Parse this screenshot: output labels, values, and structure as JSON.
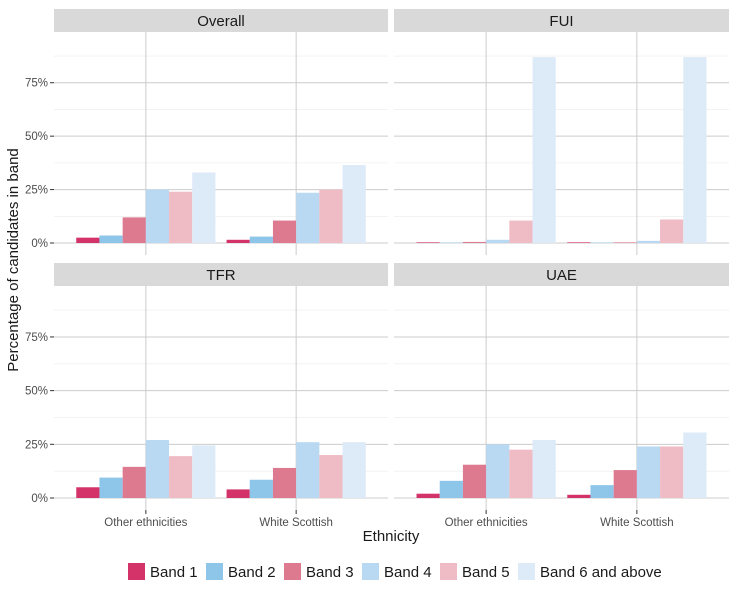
{
  "chart_data": {
    "type": "bar",
    "xlabel": "Ethnicity",
    "ylabel": "Percentage of candidates in band",
    "ylim": [
      0,
      95
    ],
    "y_ticks": [
      0,
      25,
      50,
      75
    ],
    "y_tick_labels": [
      "0%",
      "25%",
      "50%",
      "75%"
    ],
    "categories": [
      "Other ethnicities",
      "White Scottish"
    ],
    "series_names": [
      "Band 1",
      "Band 2",
      "Band 3",
      "Band 4",
      "Band 5",
      "Band 6 and above"
    ],
    "colors": [
      "#d4336a",
      "#8ec6ea",
      "#de7a90",
      "#b9d9f2",
      "#efbcc6",
      "#ddeaf7"
    ],
    "grid": true,
    "legend_position": "bottom",
    "facets": [
      {
        "title": "Overall",
        "values": [
          [
            2.5,
            3.5,
            12,
            25,
            24,
            33
          ],
          [
            1.5,
            3,
            10.5,
            23.5,
            25,
            36.5
          ]
        ]
      },
      {
        "title": "FUI",
        "values": [
          [
            0.3,
            0.2,
            0.5,
            1.5,
            10.5,
            87
          ],
          [
            0.3,
            0.2,
            0.3,
            1,
            11,
            87
          ]
        ]
      },
      {
        "title": "TFR",
        "values": [
          [
            5,
            9.5,
            14.5,
            27,
            19.5,
            24.5
          ],
          [
            4,
            8.5,
            14,
            26,
            20,
            26
          ]
        ]
      },
      {
        "title": "UAE",
        "values": [
          [
            2,
            8,
            15.5,
            25,
            22.5,
            27
          ],
          [
            1.5,
            6,
            13,
            24,
            24,
            30.5
          ]
        ]
      }
    ]
  }
}
